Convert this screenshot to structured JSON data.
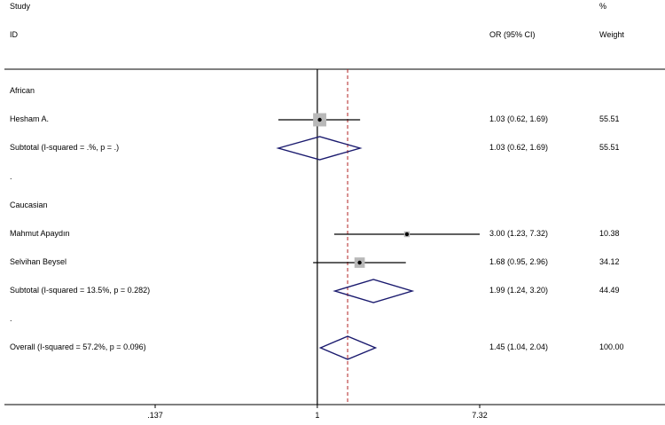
{
  "header": {
    "study_label": "Study",
    "id_label": "ID",
    "or_label": "OR (95% CI)",
    "pct_label": "%",
    "weight_label": "Weight"
  },
  "colors": {
    "line": "#000000",
    "box": "#b8b8b8",
    "diamond": "#1a1a6e",
    "null_line": "#000000",
    "overall_line": "#b22222"
  },
  "chart_data": {
    "type": "forest",
    "scale": "log",
    "x_ticks": [
      ".137",
      "1",
      "7.32"
    ],
    "x_tick_values": [
      0.137,
      1,
      7.32
    ],
    "xlim": [
      0.137,
      7.32
    ],
    "null_value": 1,
    "overall_estimate": 1.45,
    "rows": [
      {
        "kind": "group",
        "label": "African"
      },
      {
        "kind": "study",
        "label": " Hesham A.",
        "or": 1.03,
        "lo": 0.62,
        "hi": 1.69,
        "ci_text": "1.03 (0.62, 1.69)",
        "weight": 55.51,
        "weight_text": "55.51"
      },
      {
        "kind": "subtotal",
        "label": "Subtotal  (I-squared = .%, p = .)",
        "or": 1.03,
        "lo": 0.62,
        "hi": 1.69,
        "ci_text": "1.03 (0.62, 1.69)",
        "weight_text": "55.51"
      },
      {
        "kind": "spacer",
        "label": "."
      },
      {
        "kind": "group",
        "label": "Caucasian"
      },
      {
        "kind": "study",
        "label": "Mahmut Apaydın",
        "or": 3.0,
        "lo": 1.23,
        "hi": 7.32,
        "ci_text": "3.00 (1.23, 7.32)",
        "weight": 10.38,
        "weight_text": "10.38"
      },
      {
        "kind": "study",
        "label": "Selvihan Beysel",
        "or": 1.68,
        "lo": 0.95,
        "hi": 2.96,
        "ci_text": "1.68 (0.95, 2.96)",
        "weight": 34.12,
        "weight_text": "34.12"
      },
      {
        "kind": "subtotal",
        "label": "Subtotal  (I-squared = 13.5%, p = 0.282)",
        "or": 1.99,
        "lo": 1.24,
        "hi": 3.2,
        "ci_text": "1.99 (1.24, 3.20)",
        "weight_text": "44.49"
      },
      {
        "kind": "spacer",
        "label": "."
      },
      {
        "kind": "overall",
        "label": "Overall  (I-squared = 57.2%, p = 0.096)",
        "or": 1.45,
        "lo": 1.04,
        "hi": 2.04,
        "ci_text": "1.45 (1.04, 2.04)",
        "weight_text": "100.00"
      }
    ]
  }
}
